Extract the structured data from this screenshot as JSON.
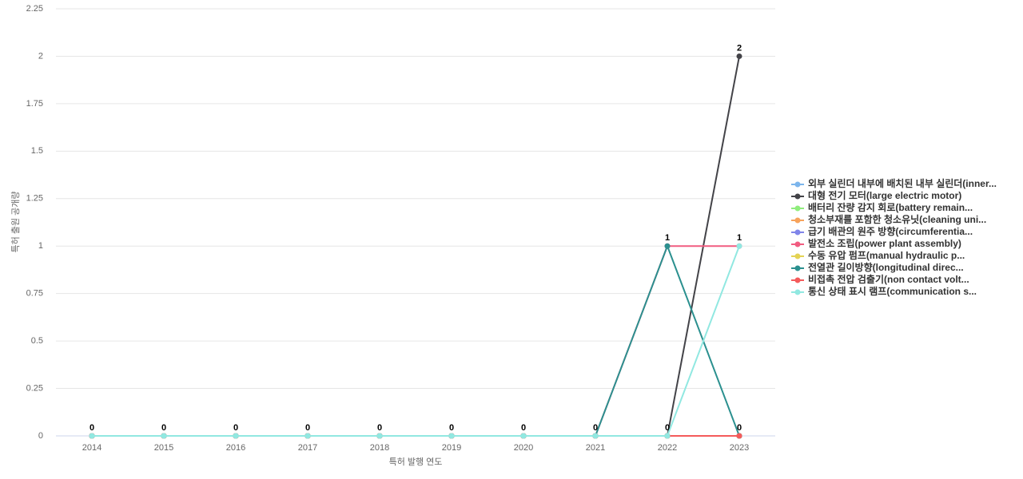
{
  "chart_data": {
    "type": "line",
    "x_label": "특허 발행 연도",
    "y_label": "특허 출원 공개량",
    "categories": [
      "2014",
      "2015",
      "2016",
      "2017",
      "2018",
      "2019",
      "2020",
      "2021",
      "2022",
      "2023"
    ],
    "ylim": [
      0,
      2.25
    ],
    "yticks": [
      0,
      0.25,
      0.5,
      0.75,
      1,
      1.25,
      1.5,
      1.75,
      2,
      2.25
    ],
    "grid": true,
    "legend": "right",
    "series": [
      {
        "name": "외부 실린더 내부에 배치된 내부 실린더(inner...",
        "color": "#7cb5ec",
        "values": [
          0,
          0,
          0,
          0,
          0,
          0,
          0,
          0,
          0,
          0
        ]
      },
      {
        "name": "대형 전기 모터(large electric motor)",
        "color": "#434348",
        "values": [
          0,
          0,
          0,
          0,
          0,
          0,
          0,
          0,
          0,
          2
        ]
      },
      {
        "name": "배터리 잔량 감지 회로(battery remain...",
        "color": "#90ed7d",
        "values": [
          0,
          0,
          0,
          0,
          0,
          0,
          0,
          0,
          0,
          0
        ]
      },
      {
        "name": "청소부재를 포함한 청소유닛(cleaning uni...",
        "color": "#f7a35c",
        "values": [
          0,
          0,
          0,
          0,
          0,
          0,
          0,
          0,
          0,
          0
        ]
      },
      {
        "name": "급기 배관의 원주 방향(circumferentia...",
        "color": "#8085e9",
        "values": [
          0,
          0,
          0,
          0,
          0,
          0,
          0,
          0,
          0,
          0
        ]
      },
      {
        "name": "발전소 조립(power plant assembly)",
        "color": "#f15c80",
        "values": [
          0,
          0,
          0,
          0,
          0,
          0,
          0,
          0,
          1,
          1
        ]
      },
      {
        "name": "수동 유압 펌프(manual hydraulic p...",
        "color": "#e4d354",
        "values": [
          0,
          0,
          0,
          0,
          0,
          0,
          0,
          0,
          0,
          0
        ]
      },
      {
        "name": "전열관 길이방향(longitudinal direc...",
        "color": "#2b908f",
        "values": [
          0,
          0,
          0,
          0,
          0,
          0,
          0,
          0,
          1,
          0
        ]
      },
      {
        "name": "비접촉 전압 검출기(non contact volt...",
        "color": "#f45b5b",
        "values": [
          0,
          0,
          0,
          0,
          0,
          0,
          0,
          0,
          0,
          0
        ]
      },
      {
        "name": "통신 상태 표시 램프(communication s...",
        "color": "#91e8e1",
        "values": [
          0,
          0,
          0,
          0,
          0,
          0,
          0,
          0,
          0,
          1
        ]
      }
    ]
  }
}
